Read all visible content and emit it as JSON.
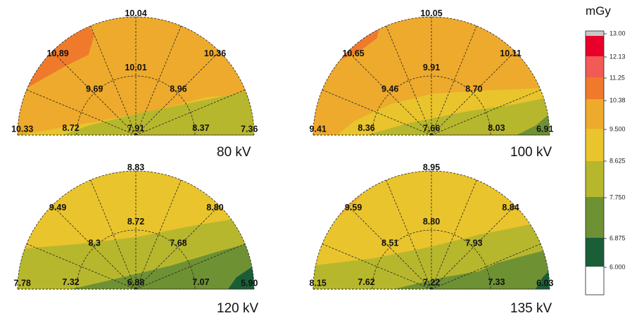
{
  "legend": {
    "unit": "mGy",
    "ticks": [
      "13.00",
      "12.13",
      "11.25",
      "10.38",
      "9.500",
      "8.625",
      "7.750",
      "6.875",
      "6.000"
    ],
    "colors": [
      "#c8c8c8",
      "#e8002a",
      "#f25a56",
      "#f07a2c",
      "#eeaa2c",
      "#e9c42c",
      "#b7b72e",
      "#6e9134",
      "#1a5e38",
      "#ffffff"
    ]
  },
  "panels": [
    {
      "label": "80 kV",
      "outer": [
        "10.33",
        "10.89",
        "10.04",
        "10.36",
        "7.36"
      ],
      "inner": [
        "8.72",
        "9.69",
        "10.01",
        "8.96",
        "8.37"
      ],
      "center": "7.91"
    },
    {
      "label": "100 kV",
      "outer": [
        "9.41",
        "10.65",
        "10.05",
        "10.11",
        "6.91"
      ],
      "inner": [
        "8.36",
        "9.46",
        "9.91",
        "8.70",
        "8.03"
      ],
      "center": "7.66"
    },
    {
      "label": "120 kV",
      "outer": [
        "7.78",
        "9.49",
        "8.83",
        "8.80",
        "5.90"
      ],
      "inner": [
        "7.32",
        "8.3",
        "8.72",
        "7.68",
        "7.07"
      ],
      "center": "6.88"
    },
    {
      "label": "135 kV",
      "outer": [
        "8.15",
        "9.59",
        "8.95",
        "8.84",
        "6.03"
      ],
      "inner": [
        "7.62",
        "8.51",
        "8.80",
        "7.93",
        "7.33"
      ],
      "center": "7.22"
    }
  ]
}
